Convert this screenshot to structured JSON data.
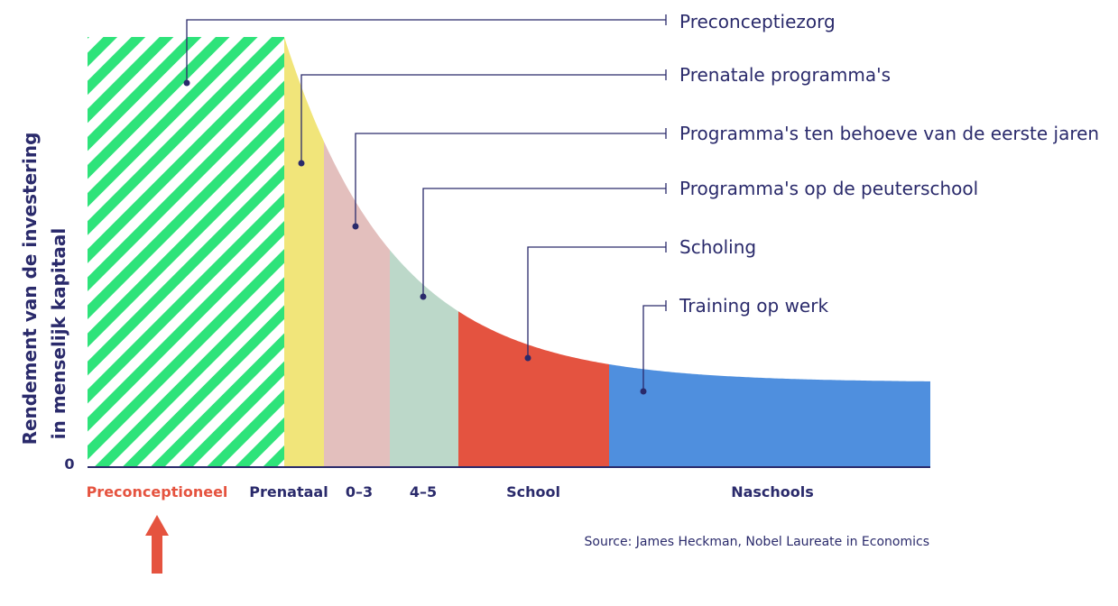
{
  "chart_data": {
    "type": "area",
    "ylabel_line1": "Rendement van de investering",
    "ylabel_line2": "in menselijk kapitaal",
    "y_zero_label": "0",
    "segments": [
      {
        "label": "Preconceptioneel",
        "annotation": "Preconceptiezorg",
        "color": "#2ee37a",
        "pattern": "stripes",
        "label_color": "#e5533f"
      },
      {
        "label": "Prenataal",
        "annotation": "Prenatale programma's",
        "color": "#f1e57a"
      },
      {
        "label": "0–3",
        "annotation": "Programma's ten behoeve van de eerste jaren",
        "color": "#e3bfbd"
      },
      {
        "label": "4–5",
        "annotation": "Programma's op de peuterschool",
        "color": "#bcd8c9"
      },
      {
        "label": "School",
        "annotation": "Scholing",
        "color": "#e45340"
      },
      {
        "label": "Naschools",
        "annotation": "Training op werk",
        "color": "#4f8fde"
      }
    ],
    "source": "Source: James Heckman, Nobel Laureate in Economics",
    "arrow_color": "#e5533f",
    "text_color": "#2a2a6b"
  }
}
